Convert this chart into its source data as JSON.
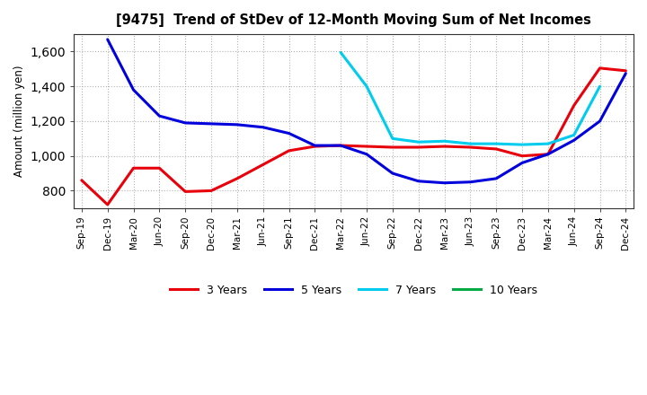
{
  "title": "[9475]  Trend of StDev of 12-Month Moving Sum of Net Incomes",
  "ylabel": "Amount (million yen)",
  "background_color": "#ffffff",
  "grid_color": "#aaaaaa",
  "ylim": [
    700,
    1700
  ],
  "yticks": [
    800,
    1000,
    1200,
    1400,
    1600
  ],
  "xtick_labels": [
    "Sep-19",
    "Dec-19",
    "Mar-20",
    "Jun-20",
    "Sep-20",
    "Dec-20",
    "Mar-21",
    "Jun-21",
    "Sep-21",
    "Dec-21",
    "Mar-22",
    "Jun-22",
    "Sep-22",
    "Dec-22",
    "Mar-23",
    "Jun-23",
    "Sep-23",
    "Dec-23",
    "Mar-24",
    "Jun-24",
    "Sep-24",
    "Dec-24"
  ],
  "series": {
    "3 Years": {
      "color": "#e8000b",
      "dates": [
        "Sep-19",
        "Dec-19",
        "Mar-20",
        "Jun-20",
        "Sep-20",
        "Dec-20",
        "Mar-21",
        "Jun-21",
        "Sep-21",
        "Dec-21",
        "Mar-22",
        "Jun-22",
        "Sep-22",
        "Dec-22",
        "Mar-23",
        "Jun-23",
        "Sep-23",
        "Dec-23",
        "Mar-24",
        "Jun-24",
        "Sep-24",
        "Dec-24"
      ],
      "values": [
        860,
        720,
        930,
        930,
        795,
        800,
        870,
        950,
        1030,
        1055,
        1060,
        1055,
        1050,
        1050,
        1055,
        1050,
        1040,
        1000,
        1010,
        1290,
        1505,
        1490
      ]
    },
    "5 Years": {
      "color": "#0000dd",
      "dates": [
        "Sep-19",
        "Dec-19",
        "Mar-20",
        "Jun-20",
        "Sep-20",
        "Dec-20",
        "Mar-21",
        "Jun-21",
        "Sep-21",
        "Dec-21",
        "Mar-22",
        "Jun-22",
        "Sep-22",
        "Dec-22",
        "Mar-23",
        "Jun-23",
        "Sep-23",
        "Dec-23",
        "Mar-24",
        "Jun-24",
        "Sep-24",
        "Dec-24"
      ],
      "values": [
        null,
        1670,
        1380,
        1230,
        1190,
        1185,
        1180,
        1165,
        1130,
        1060,
        1060,
        1010,
        900,
        855,
        845,
        850,
        870,
        960,
        1010,
        1090,
        1200,
        1475
      ]
    },
    "7 Years": {
      "color": "#00ccee",
      "dates": [
        "Mar-22",
        "Jun-22",
        "Sep-22",
        "Dec-22",
        "Mar-23",
        "Jun-23",
        "Sep-23",
        "Dec-23",
        "Mar-24",
        "Jun-24",
        "Sep-24"
      ],
      "values": [
        1595,
        1400,
        1100,
        1080,
        1085,
        1070,
        1070,
        1065,
        1070,
        1120,
        1400
      ]
    },
    "10 Years": {
      "color": "#00aa44",
      "dates": [],
      "values": []
    }
  },
  "legend": [
    {
      "label": "3 Years",
      "color": "#e8000b"
    },
    {
      "label": "5 Years",
      "color": "#0000dd"
    },
    {
      "label": "7 Years",
      "color": "#00ccee"
    },
    {
      "label": "10 Years",
      "color": "#00aa44"
    }
  ]
}
